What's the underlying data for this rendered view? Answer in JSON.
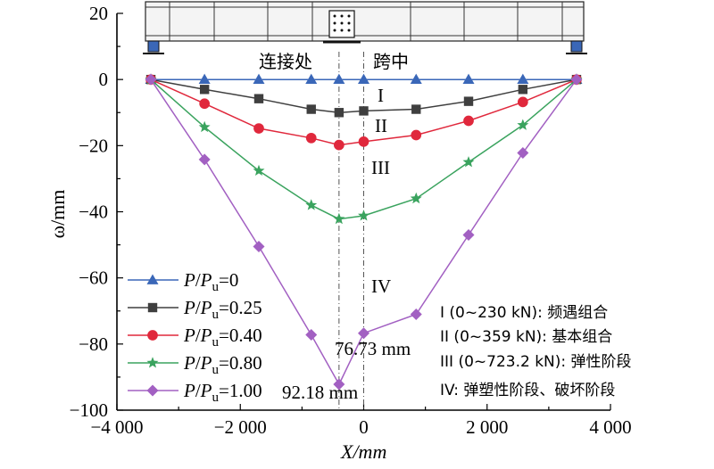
{
  "chart_data": {
    "type": "line",
    "xlabel": "X/mm",
    "ylabel": "ω/mm",
    "xlim": [
      -4000,
      4000
    ],
    "ylim": [
      -100,
      20
    ],
    "x_ticks": [
      -4000,
      -2000,
      0,
      2000,
      4000
    ],
    "x_tick_labels": [
      "−4 000",
      "−2 000",
      "0",
      "2 000",
      "4 000"
    ],
    "y_ticks": [
      20,
      0,
      -20,
      -40,
      -60,
      -80,
      -100
    ],
    "y_tick_labels": [
      "20",
      "0",
      "−20",
      "−40",
      "−60",
      "−80",
      "−100"
    ],
    "x": [
      -3450,
      -2580,
      -1700,
      -850,
      -400,
      0,
      850,
      1700,
      2580,
      3450
    ],
    "series": [
      {
        "name": "P/Pu=0",
        "ratio": "0",
        "marker": "triangle",
        "color": "#3a67b8",
        "values": [
          0,
          0,
          0,
          0,
          0,
          0,
          0,
          0,
          0,
          0
        ]
      },
      {
        "name": "P/Pu=0.25",
        "ratio": "0.25",
        "marker": "square",
        "color": "#3f3f3f",
        "values": [
          0,
          -3.0,
          -5.8,
          -9.0,
          -10.0,
          -9.5,
          -9.0,
          -6.6,
          -3.0,
          0
        ]
      },
      {
        "name": "P/Pu=0.40",
        "ratio": "0.40",
        "marker": "circle",
        "color": "#e0283c",
        "values": [
          0,
          -7.3,
          -14.8,
          -17.7,
          -19.8,
          -18.8,
          -16.8,
          -12.5,
          -6.8,
          0
        ]
      },
      {
        "name": "P/Pu=0.80",
        "ratio": "0.80",
        "marker": "star",
        "color": "#3aa35e",
        "values": [
          0,
          -14.4,
          -27.6,
          -38.0,
          -42.2,
          -41.2,
          -36.0,
          -25.0,
          -13.8,
          0
        ]
      },
      {
        "name": "P/Pu=1.00",
        "ratio": "1.00",
        "marker": "diamond",
        "color": "#a260c2",
        "values": [
          0,
          -24.2,
          -50.5,
          -77.2,
          -92.18,
          -76.73,
          -71.0,
          -47.0,
          -22.2,
          0
        ]
      }
    ],
    "annotations": {
      "peak_label_1": "76.73 mm",
      "peak_label_2": "92.18 mm",
      "stage_I": "I",
      "stage_II": "II",
      "stage_III": "III",
      "stage_IV": "IV",
      "connection_label": "连接处",
      "midspan_label": "跨中",
      "stage_legend": [
        "I (0~230 kN): 频遇组合",
        "II (0~359 kN): 基本组合",
        "III (0~723.2 kN): 弹性阶段",
        "IV: 弹塑性阶段、破坏阶段"
      ]
    },
    "reference_lines_x": [
      -400,
      0
    ]
  }
}
